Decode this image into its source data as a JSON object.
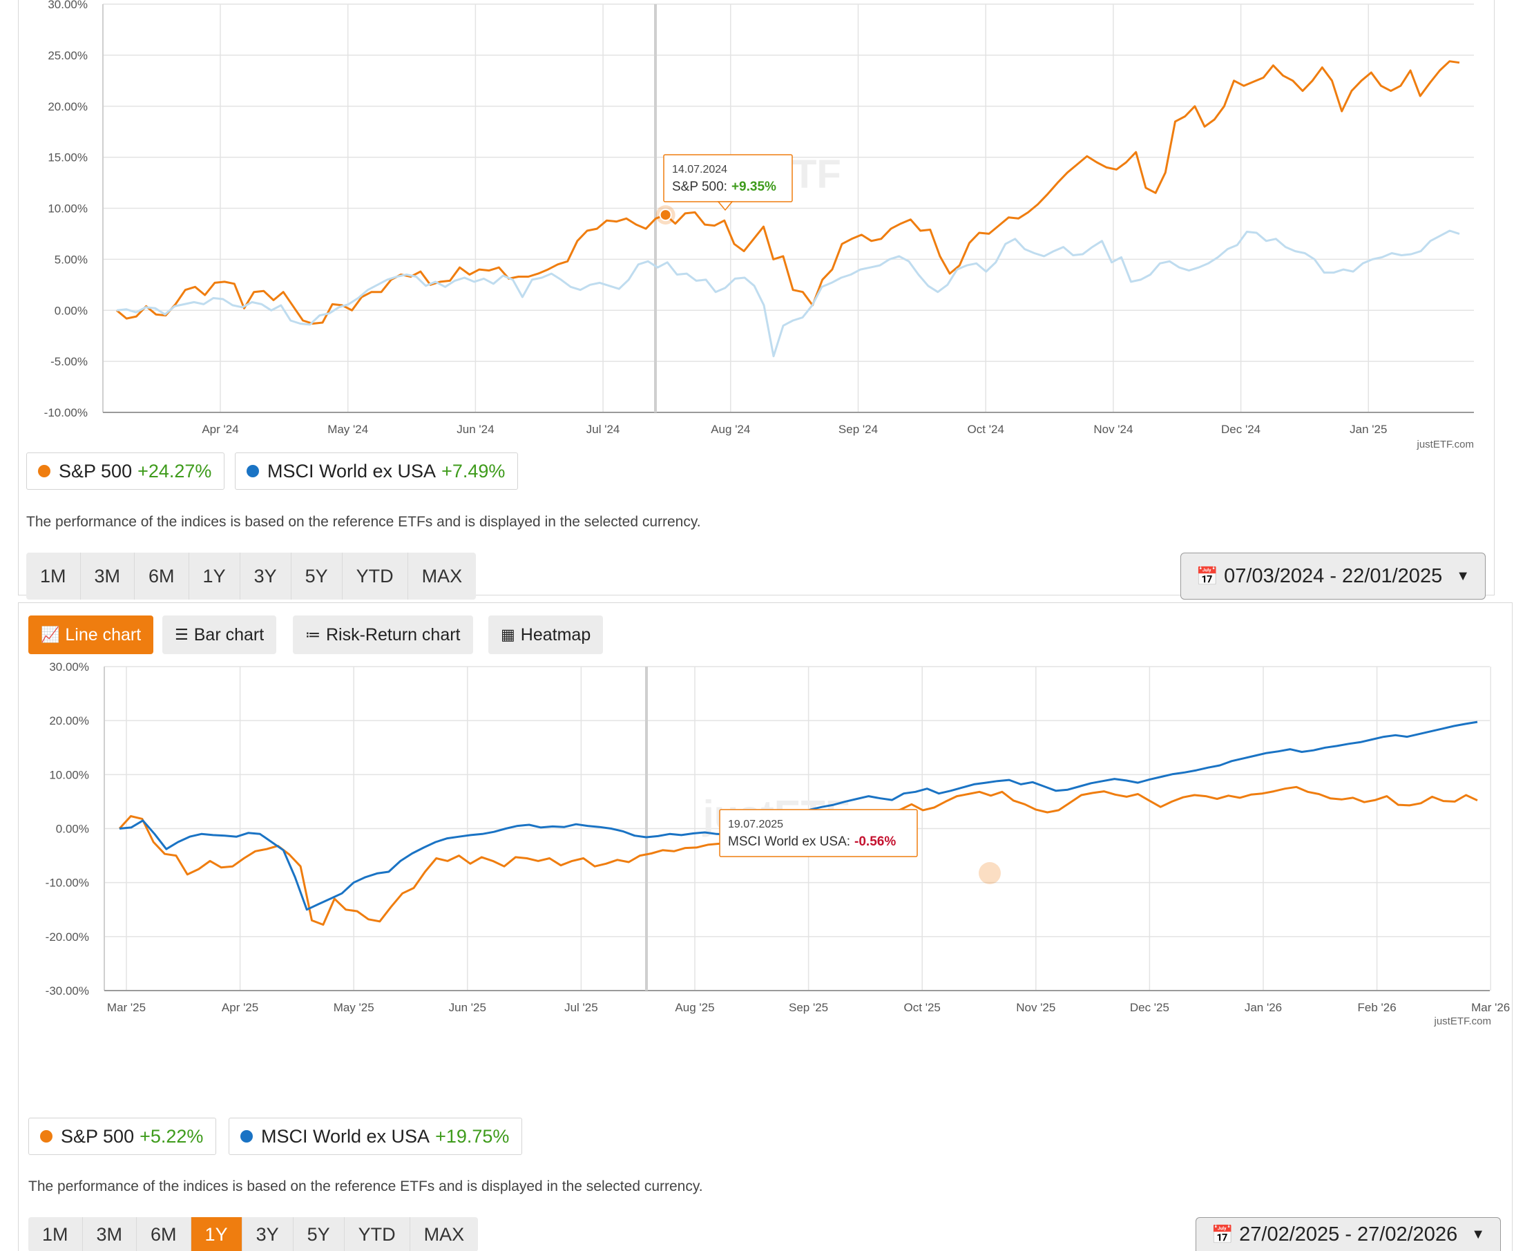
{
  "chart_data": [
    {
      "type": "line",
      "ylim": [
        -10,
        30
      ],
      "yticks": [
        "30.00%",
        "25.00%",
        "20.00%",
        "15.00%",
        "10.00%",
        "5.00%",
        "0.00%",
        "-5.00%",
        "-10.00%"
      ],
      "xticks": [
        "Apr '24",
        "May '24",
        "Jun '24",
        "Jul '24",
        "Aug '24",
        "Sep '24",
        "Oct '24",
        "Nov '24",
        "Dec '24",
        "Jan '25"
      ],
      "grid": true,
      "watermark": "justETF",
      "credit": "justETF.com",
      "series": [
        {
          "name": "S&P 500",
          "color": "#ef7d0f",
          "values": [
            0.0,
            -0.8,
            -0.6,
            0.4,
            -0.4,
            -0.5,
            0.6,
            2.0,
            2.3,
            1.5,
            2.7,
            2.8,
            2.6,
            0.2,
            1.8,
            1.9,
            1.0,
            1.8,
            0.4,
            -1.0,
            -1.3,
            -1.2,
            0.6,
            0.5,
            0.0,
            1.3,
            1.8,
            1.8,
            3.0,
            3.5,
            3.3,
            3.8,
            2.5,
            2.8,
            2.9,
            4.2,
            3.5,
            4.0,
            3.9,
            4.2,
            3.1,
            3.3,
            3.3,
            3.6,
            4.0,
            4.5,
            4.8,
            6.8,
            7.8,
            8.0,
            8.8,
            8.7,
            9.0,
            8.4,
            8.0,
            9.0,
            9.35,
            8.5,
            9.5,
            9.6,
            8.4,
            8.3,
            8.8,
            6.5,
            5.8,
            7.0,
            8.2,
            5.0,
            5.3,
            2.0,
            1.8,
            0.5,
            3.0,
            4.0,
            6.5,
            7.0,
            7.4,
            6.8,
            7.0,
            8.0,
            8.5,
            8.9,
            7.8,
            7.9,
            5.3,
            3.6,
            4.4,
            6.6,
            7.6,
            7.5,
            8.3,
            9.1,
            9.0,
            9.6,
            10.4,
            11.4,
            12.5,
            13.5,
            14.3,
            15.1,
            14.5,
            14.0,
            13.8,
            14.5,
            15.5,
            12.0,
            11.5,
            13.5,
            18.5,
            19.0,
            20.0,
            18.0,
            18.7,
            20.0,
            22.5,
            22.0,
            22.4,
            22.8,
            24.0,
            23.0,
            22.5,
            21.5,
            22.5,
            23.8,
            22.5,
            19.5,
            21.5,
            22.5,
            23.3,
            22.0,
            21.5,
            22.0,
            23.5,
            21.0,
            22.3,
            23.5,
            24.4,
            24.27
          ]
        },
        {
          "name": "MSCI World ex USA",
          "color": "#bfdcef",
          "values": [
            0.0,
            0.1,
            -0.2,
            0.3,
            0.2,
            -0.4,
            0.4,
            0.6,
            0.8,
            0.6,
            1.2,
            1.1,
            0.5,
            0.3,
            0.8,
            0.6,
            0.0,
            0.5,
            -1.0,
            -1.3,
            -1.4,
            -0.5,
            -0.3,
            0.3,
            0.6,
            1.2,
            2.0,
            2.5,
            3.0,
            3.3,
            3.5,
            3.3,
            2.4,
            2.8,
            2.3,
            2.9,
            3.2,
            2.8,
            3.1,
            2.6,
            3.4,
            3.0,
            1.3,
            3.0,
            3.2,
            3.6,
            3.0,
            2.3,
            2.0,
            2.5,
            2.7,
            2.4,
            2.1,
            3.0,
            4.5,
            4.8,
            4.2,
            4.7,
            3.5,
            3.6,
            2.9,
            3.0,
            1.8,
            2.2,
            3.1,
            3.2,
            2.4,
            0.5,
            -4.5,
            -1.5,
            -1.0,
            -0.7,
            0.5,
            2.3,
            2.7,
            3.2,
            3.5,
            4.0,
            4.2,
            4.4,
            5.0,
            5.3,
            4.8,
            3.5,
            2.4,
            1.8,
            2.5,
            4.0,
            4.4,
            4.6,
            3.8,
            4.7,
            6.5,
            7.0,
            6.0,
            5.6,
            5.3,
            5.8,
            6.2,
            5.4,
            5.5,
            6.2,
            6.8,
            4.7,
            5.2,
            2.8,
            3.0,
            3.5,
            4.6,
            4.8,
            4.2,
            3.9,
            4.2,
            4.6,
            5.2,
            6.0,
            6.4,
            7.7,
            7.6,
            6.8,
            7.0,
            6.2,
            5.8,
            5.6,
            5.0,
            3.7,
            3.7,
            4.0,
            3.8,
            4.6,
            5.0,
            5.2,
            5.6,
            5.4,
            5.5,
            5.8,
            6.8,
            7.3,
            7.8,
            7.49
          ]
        }
      ],
      "tooltip": {
        "date": "14.07.2024",
        "label": "S&P 500:",
        "value": "+9.35%"
      }
    },
    {
      "type": "line",
      "ylim": [
        -30,
        30
      ],
      "yticks": [
        "30.00%",
        "20.00%",
        "10.00%",
        "0.00%",
        "-10.00%",
        "-20.00%",
        "-30.00%"
      ],
      "xticks": [
        "Mar '25",
        "Apr '25",
        "May '25",
        "Jun '25",
        "Jul '25",
        "Aug '25",
        "Sep '25",
        "Oct '25",
        "Nov '25",
        "Dec '25",
        "Jan '26",
        "Feb '26",
        "Mar '26"
      ],
      "grid": true,
      "watermark": "justETF",
      "credit": "justETF.com",
      "series": [
        {
          "name": "S&P 500",
          "color": "#ef7d0f",
          "values": [
            0.0,
            2.3,
            1.8,
            -2.5,
            -4.7,
            -5.0,
            -8.5,
            -7.5,
            -6.0,
            -7.2,
            -7.0,
            -5.5,
            -4.2,
            -3.8,
            -3.2,
            -4.8,
            -7.0,
            -17.0,
            -17.8,
            -13.0,
            -15.0,
            -15.3,
            -16.8,
            -17.2,
            -14.5,
            -12.0,
            -11.0,
            -8.0,
            -5.5,
            -6.0,
            -5.0,
            -6.5,
            -5.3,
            -6.0,
            -7.0,
            -5.3,
            -5.5,
            -6.0,
            -5.5,
            -6.8,
            -6.0,
            -5.5,
            -7.0,
            -6.5,
            -5.8,
            -6.2,
            -5.0,
            -4.6,
            -4.0,
            -4.2,
            -3.6,
            -3.5,
            -3.0,
            -2.8,
            -2.4,
            -2.7,
            -2.0,
            -1.5,
            -1.6,
            -1.4,
            -0.5,
            -0.2,
            0.6,
            2.0,
            3.0,
            2.8,
            2.4,
            3.3,
            3.0,
            3.5,
            4.5,
            3.4,
            3.9,
            5.0,
            6.0,
            6.4,
            6.8,
            6.1,
            6.8,
            5.2,
            4.5,
            3.5,
            3.0,
            3.4,
            4.8,
            6.2,
            6.6,
            6.9,
            6.3,
            5.9,
            6.4,
            5.2,
            4.0,
            5.0,
            5.8,
            6.2,
            6.0,
            5.5,
            6.1,
            5.7,
            6.3,
            6.5,
            6.9,
            7.4,
            7.7,
            6.8,
            6.4,
            5.6,
            5.4,
            5.7,
            4.9,
            5.3,
            6.0,
            4.4,
            4.3,
            4.7,
            5.9,
            5.1,
            5.0,
            6.2,
            5.22
          ]
        },
        {
          "name": "MSCI World ex USA",
          "color": "#1a73c4",
          "values": [
            0.0,
            0.2,
            1.5,
            -1.0,
            -3.8,
            -2.5,
            -1.5,
            -1.0,
            -1.2,
            -1.3,
            -1.5,
            -0.8,
            -1.0,
            -2.5,
            -4.0,
            -9.0,
            -15.0,
            -14.0,
            -13.0,
            -12.0,
            -10.0,
            -9.0,
            -8.3,
            -8.0,
            -6.0,
            -4.6,
            -3.5,
            -2.5,
            -1.8,
            -1.5,
            -1.2,
            -1.0,
            -0.6,
            0.0,
            0.5,
            0.7,
            0.2,
            0.4,
            0.3,
            0.8,
            0.5,
            0.3,
            0.0,
            -0.5,
            -1.3,
            -1.6,
            -1.4,
            -1.0,
            -1.2,
            -0.9,
            -0.7,
            -1.0,
            -1.1,
            -0.8,
            -0.56,
            0.3,
            1.0,
            1.5,
            2.5,
            3.5,
            4.0,
            4.4,
            5.0,
            5.5,
            6.0,
            5.6,
            5.3,
            6.5,
            6.8,
            7.4,
            6.5,
            7.0,
            7.6,
            8.2,
            8.5,
            8.8,
            9.0,
            8.2,
            8.6,
            7.8,
            7.0,
            7.2,
            7.8,
            8.4,
            8.8,
            9.2,
            8.9,
            8.5,
            9.1,
            9.6,
            10.1,
            10.4,
            10.8,
            11.3,
            11.7,
            12.5,
            13.0,
            13.5,
            14.0,
            14.3,
            14.7,
            14.2,
            14.5,
            15.0,
            15.3,
            15.7,
            16.0,
            16.5,
            17.0,
            17.3,
            17.0,
            17.5,
            18.0,
            18.5,
            19.0,
            19.4,
            19.75
          ]
        }
      ],
      "tooltip": {
        "date": "19.07.2025",
        "label": "MSCI World ex USA:",
        "value": "-0.56%"
      }
    }
  ],
  "panel1": {
    "legend": [
      {
        "name": "S&P 500",
        "value": "+24.27%",
        "dot_color": "#ef7d0f"
      },
      {
        "name": "MSCI World ex USA",
        "value": "+7.49%",
        "dot_color": "#1a73c4"
      }
    ],
    "note": "The performance of the indices is based on the reference ETFs and is displayed in the selected currency.",
    "ranges": [
      "1M",
      "3M",
      "6M",
      "1Y",
      "3Y",
      "5Y",
      "YTD",
      "MAX"
    ],
    "active_range": null,
    "date_range": "07/03/2024 - 22/01/2025"
  },
  "panel2": {
    "chart_types": [
      {
        "label": "Line chart",
        "icon": "line-chart-icon",
        "active": true
      },
      {
        "label": "Bar chart",
        "icon": "bar-chart-icon",
        "active": false
      },
      {
        "label": "Risk-Return chart",
        "icon": "scatter-chart-icon",
        "active": false
      },
      {
        "label": "Heatmap",
        "icon": "grid-icon",
        "active": false
      }
    ],
    "legend": [
      {
        "name": "S&P 500",
        "value": "+5.22%",
        "dot_color": "#ef7d0f"
      },
      {
        "name": "MSCI World ex USA",
        "value": "+19.75%",
        "dot_color": "#1a73c4"
      }
    ],
    "note": "The performance of the indices is based on the reference ETFs and is displayed in the selected currency.",
    "ranges": [
      "1M",
      "3M",
      "6M",
      "1Y",
      "3Y",
      "5Y",
      "YTD",
      "MAX"
    ],
    "active_range": "1Y",
    "date_range": "27/02/2025 - 27/02/2026"
  }
}
